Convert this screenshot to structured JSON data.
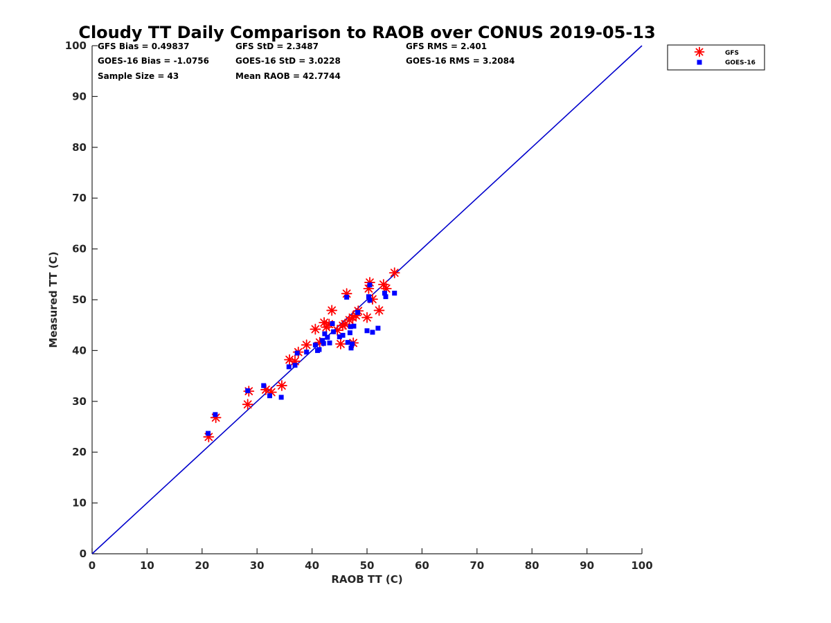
{
  "chart_data": {
    "type": "scatter",
    "title": "Cloudy TT Daily Comparison to RAOB over CONUS 2019-05-13",
    "xlabel": "RAOB TT (C)",
    "ylabel": "Measured TT (C)",
    "xlim": [
      0,
      100
    ],
    "ylim": [
      0,
      100
    ],
    "xticks": [
      "0",
      "10",
      "20",
      "30",
      "40",
      "50",
      "60",
      "70",
      "80",
      "90",
      "100"
    ],
    "yticks": [
      "0",
      "10",
      "20",
      "30",
      "40",
      "50",
      "60",
      "70",
      "80",
      "90",
      "100"
    ],
    "grid": false,
    "legend_position": "outside-top-right",
    "reference_line": {
      "from": [
        0,
        0
      ],
      "to": [
        100,
        100
      ],
      "color": "#0000cc"
    },
    "stats": [
      {
        "text": "GFS Bias = 0.49837",
        "row": 0,
        "col": 0
      },
      {
        "text": "GFS StD = 2.3487",
        "row": 0,
        "col": 1
      },
      {
        "text": "GFS RMS = 2.401",
        "row": 0,
        "col": 2
      },
      {
        "text": "GOES-16 Bias = -1.0756",
        "row": 1,
        "col": 0
      },
      {
        "text": "GOES-16 StD = 3.0228",
        "row": 1,
        "col": 1
      },
      {
        "text": "GOES-16 RMS = 3.2084",
        "row": 1,
        "col": 2
      },
      {
        "text": "Sample Size = 43",
        "row": 2,
        "col": 0
      },
      {
        "text": "Mean RAOB = 42.7744",
        "row": 2,
        "col": 1
      }
    ],
    "series": [
      {
        "name": "GFS",
        "marker": "asterisk",
        "color": "#ff0000",
        "points": [
          [
            21.2,
            23.0
          ],
          [
            22.5,
            26.8
          ],
          [
            28.3,
            29.4
          ],
          [
            28.5,
            32.0
          ],
          [
            31.6,
            32.3
          ],
          [
            32.6,
            31.8
          ],
          [
            34.5,
            33.1
          ],
          [
            35.9,
            38.2
          ],
          [
            36.9,
            37.9
          ],
          [
            37.5,
            39.7
          ],
          [
            39.0,
            41.1
          ],
          [
            40.6,
            44.2
          ],
          [
            41.4,
            41.6
          ],
          [
            42.2,
            45.5
          ],
          [
            42.6,
            44.6
          ],
          [
            43.1,
            45.2
          ],
          [
            43.6,
            47.9
          ],
          [
            44.6,
            44.0
          ],
          [
            45.2,
            41.3
          ],
          [
            45.6,
            44.9
          ],
          [
            46.0,
            45.2
          ],
          [
            46.3,
            51.2
          ],
          [
            46.8,
            46.0
          ],
          [
            47.4,
            46.5
          ],
          [
            47.5,
            41.5
          ],
          [
            48.0,
            46.9
          ],
          [
            48.4,
            47.8
          ],
          [
            50.0,
            46.5
          ],
          [
            50.3,
            52.2
          ],
          [
            50.5,
            53.4
          ],
          [
            51.0,
            50.1
          ],
          [
            52.2,
            47.9
          ],
          [
            53.0,
            53.0
          ],
          [
            53.5,
            52.2
          ],
          [
            55.0,
            55.3
          ]
        ]
      },
      {
        "name": "GOES-16",
        "marker": "square",
        "color": "#0000ff",
        "points": [
          [
            21.1,
            23.7
          ],
          [
            22.4,
            27.4
          ],
          [
            28.3,
            32.1
          ],
          [
            31.2,
            33.1
          ],
          [
            32.3,
            31.1
          ],
          [
            34.4,
            30.8
          ],
          [
            35.8,
            36.8
          ],
          [
            36.9,
            37.1
          ],
          [
            37.3,
            39.5
          ],
          [
            39.0,
            39.7
          ],
          [
            40.6,
            41.1
          ],
          [
            41.0,
            40.0
          ],
          [
            41.3,
            40.2
          ],
          [
            41.9,
            42.0
          ],
          [
            42.1,
            41.4
          ],
          [
            42.3,
            43.3
          ],
          [
            42.8,
            42.6
          ],
          [
            43.2,
            41.5
          ],
          [
            43.7,
            45.3
          ],
          [
            43.9,
            43.7
          ],
          [
            45.0,
            42.7
          ],
          [
            45.6,
            43.0
          ],
          [
            46.3,
            50.5
          ],
          [
            46.5,
            41.6
          ],
          [
            46.9,
            43.5
          ],
          [
            47.0,
            44.7
          ],
          [
            47.1,
            40.5
          ],
          [
            47.3,
            41.3
          ],
          [
            47.6,
            44.8
          ],
          [
            48.3,
            47.5
          ],
          [
            50.0,
            43.9
          ],
          [
            50.3,
            50.6
          ],
          [
            50.5,
            49.9
          ],
          [
            50.5,
            52.9
          ],
          [
            51.0,
            43.6
          ],
          [
            52.0,
            44.4
          ],
          [
            53.2,
            51.3
          ],
          [
            53.4,
            50.6
          ],
          [
            55.0,
            51.3
          ]
        ]
      }
    ]
  }
}
